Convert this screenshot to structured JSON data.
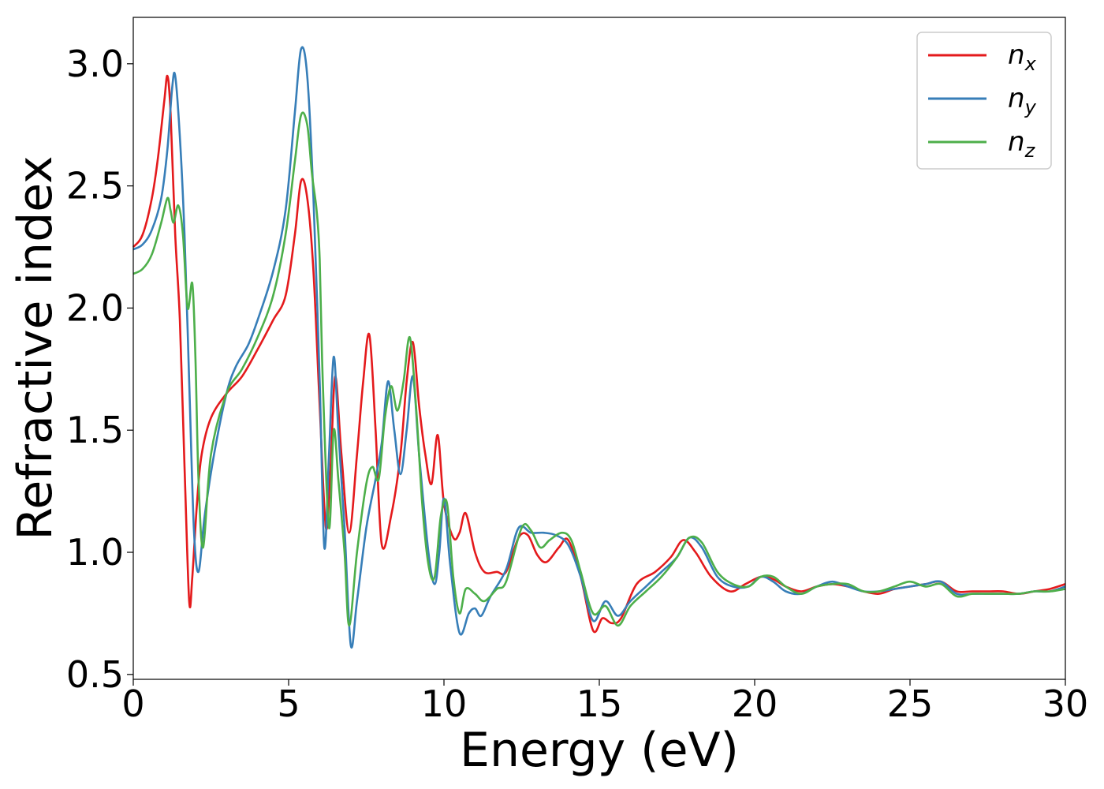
{
  "chart_data": {
    "type": "line",
    "xlabel": "Energy (eV)",
    "ylabel": "Refractive index",
    "xlim": [
      0,
      30
    ],
    "ylim": [
      0.48,
      3.19
    ],
    "xticks": [
      0,
      5,
      10,
      15,
      20,
      25,
      30
    ],
    "xtick_labels": [
      "0",
      "5",
      "10",
      "15",
      "20",
      "25",
      "30"
    ],
    "yticks": [
      0.5,
      1.0,
      1.5,
      2.0,
      2.5,
      3.0
    ],
    "ytick_labels": [
      "0.5",
      "1.0",
      "1.5",
      "2.0",
      "2.5",
      "3.0"
    ],
    "grid": false,
    "legend_position": "top-right",
    "series": [
      {
        "name": "n_x",
        "label_main": "n",
        "label_sub": "x",
        "color": "#e41a1c",
        "x": [
          0,
          0.3,
          0.6,
          0.8,
          1.0,
          1.1,
          1.2,
          1.35,
          1.5,
          1.65,
          1.8,
          1.9,
          2.05,
          2.2,
          2.5,
          3.0,
          3.5,
          4.0,
          4.5,
          4.9,
          5.2,
          5.4,
          5.6,
          5.8,
          6.0,
          6.2,
          6.35,
          6.5,
          6.7,
          6.95,
          7.2,
          7.4,
          7.6,
          7.8,
          8.0,
          8.3,
          8.6,
          8.8,
          9.0,
          9.2,
          9.4,
          9.6,
          9.8,
          10.0,
          10.3,
          10.5,
          10.7,
          11.0,
          11.3,
          11.7,
          12.0,
          12.4,
          12.7,
          13.0,
          13.3,
          13.7,
          14.0,
          14.4,
          14.8,
          15.1,
          15.4,
          15.7,
          16.2,
          16.8,
          17.3,
          17.7,
          18.1,
          18.6,
          19.2,
          19.7,
          20.2,
          20.6,
          21.0,
          21.5,
          22.0,
          22.5,
          23.0,
          23.5,
          24.0,
          24.5,
          25.0,
          25.5,
          26.0,
          26.5,
          27.0,
          27.5,
          28.0,
          28.5,
          29.0,
          29.5,
          30.0
        ],
        "y": [
          2.25,
          2.3,
          2.45,
          2.62,
          2.85,
          2.95,
          2.8,
          2.3,
          1.95,
          1.35,
          0.8,
          0.9,
          1.2,
          1.4,
          1.55,
          1.65,
          1.72,
          1.83,
          1.95,
          2.05,
          2.3,
          2.52,
          2.45,
          2.15,
          1.6,
          1.1,
          1.35,
          1.72,
          1.4,
          1.08,
          1.4,
          1.7,
          1.89,
          1.5,
          1.03,
          1.15,
          1.4,
          1.7,
          1.86,
          1.6,
          1.4,
          1.28,
          1.48,
          1.2,
          1.06,
          1.08,
          1.16,
          1.0,
          0.92,
          0.92,
          0.92,
          1.06,
          1.07,
          0.99,
          0.96,
          1.02,
          1.05,
          0.9,
          0.68,
          0.73,
          0.71,
          0.73,
          0.87,
          0.92,
          0.98,
          1.05,
          1.0,
          0.9,
          0.84,
          0.87,
          0.9,
          0.89,
          0.86,
          0.84,
          0.86,
          0.87,
          0.86,
          0.84,
          0.83,
          0.85,
          0.86,
          0.87,
          0.88,
          0.84,
          0.84,
          0.84,
          0.84,
          0.83,
          0.84,
          0.85,
          0.87
        ]
      },
      {
        "name": "n_y",
        "label_main": "n",
        "label_sub": "y",
        "color": "#377eb8",
        "x": [
          0,
          0.3,
          0.6,
          0.9,
          1.1,
          1.25,
          1.35,
          1.5,
          1.65,
          1.8,
          1.95,
          2.1,
          2.3,
          2.6,
          3.0,
          3.3,
          3.7,
          4.0,
          4.5,
          4.9,
          5.2,
          5.4,
          5.6,
          5.8,
          6.0,
          6.15,
          6.3,
          6.45,
          6.6,
          6.8,
          7.0,
          7.2,
          7.5,
          7.8,
          8.0,
          8.2,
          8.4,
          8.6,
          8.8,
          9.0,
          9.2,
          9.5,
          9.7,
          9.85,
          10.0,
          10.2,
          10.5,
          10.8,
          11.0,
          11.2,
          11.5,
          12.0,
          12.4,
          12.8,
          13.2,
          13.6,
          14.0,
          14.4,
          14.8,
          15.2,
          15.6,
          16.0,
          16.5,
          17.0,
          17.5,
          17.9,
          18.3,
          18.8,
          19.3,
          19.8,
          20.2,
          20.6,
          21.0,
          21.5,
          22.0,
          22.5,
          23.0,
          23.5,
          24.0,
          24.5,
          25.0,
          25.5,
          26.0,
          26.5,
          27.0,
          27.5,
          28.0,
          28.5,
          29.0,
          29.5,
          30.0
        ],
        "y": [
          2.24,
          2.26,
          2.32,
          2.45,
          2.65,
          2.9,
          2.95,
          2.7,
          2.3,
          1.7,
          1.1,
          0.92,
          1.15,
          1.4,
          1.65,
          1.76,
          1.85,
          1.95,
          2.15,
          2.4,
          2.8,
          3.06,
          2.95,
          2.45,
          1.7,
          1.02,
          1.4,
          1.8,
          1.5,
          1.1,
          0.62,
          0.8,
          1.1,
          1.3,
          1.45,
          1.7,
          1.5,
          1.32,
          1.5,
          1.72,
          1.4,
          1.0,
          0.87,
          1.0,
          1.22,
          0.95,
          0.67,
          0.75,
          0.77,
          0.74,
          0.82,
          0.93,
          1.1,
          1.08,
          1.08,
          1.07,
          1.03,
          0.9,
          0.72,
          0.8,
          0.74,
          0.8,
          0.86,
          0.92,
          0.98,
          1.06,
          1.02,
          0.9,
          0.86,
          0.86,
          0.9,
          0.88,
          0.84,
          0.83,
          0.86,
          0.88,
          0.86,
          0.84,
          0.84,
          0.85,
          0.86,
          0.87,
          0.88,
          0.83,
          0.83,
          0.83,
          0.83,
          0.83,
          0.84,
          0.84,
          0.86
        ]
      },
      {
        "name": "n_z",
        "label_main": "n",
        "label_sub": "z",
        "color": "#4daf4a",
        "x": [
          0,
          0.3,
          0.6,
          0.9,
          1.1,
          1.2,
          1.3,
          1.45,
          1.6,
          1.75,
          1.9,
          2.0,
          2.1,
          2.25,
          2.5,
          3.0,
          3.5,
          4.0,
          4.5,
          4.9,
          5.2,
          5.4,
          5.6,
          5.75,
          5.9,
          6.0,
          6.1,
          6.3,
          6.45,
          6.6,
          6.8,
          6.95,
          7.2,
          7.5,
          7.7,
          7.9,
          8.1,
          8.3,
          8.5,
          8.7,
          8.9,
          9.1,
          9.3,
          9.5,
          9.7,
          9.9,
          10.1,
          10.3,
          10.5,
          10.7,
          11.0,
          11.3,
          11.7,
          12.0,
          12.5,
          12.8,
          13.1,
          13.4,
          13.8,
          14.1,
          14.4,
          14.8,
          15.2,
          15.6,
          16.0,
          16.5,
          17.0,
          17.5,
          17.9,
          18.3,
          18.8,
          19.3,
          19.8,
          20.2,
          20.6,
          21.0,
          21.5,
          22.0,
          22.5,
          23.0,
          23.5,
          24.0,
          24.5,
          25.0,
          25.5,
          26.0,
          26.5,
          27.0,
          27.5,
          28.0,
          28.5,
          29.0,
          29.5,
          30.0
        ],
        "y": [
          2.14,
          2.16,
          2.22,
          2.35,
          2.45,
          2.4,
          2.35,
          2.42,
          2.3,
          2.0,
          2.1,
          1.8,
          1.3,
          1.02,
          1.4,
          1.65,
          1.75,
          1.88,
          2.05,
          2.3,
          2.6,
          2.79,
          2.75,
          2.55,
          2.4,
          2.2,
          1.7,
          1.1,
          1.5,
          1.3,
          1.0,
          0.7,
          1.0,
          1.28,
          1.35,
          1.3,
          1.55,
          1.68,
          1.58,
          1.7,
          1.88,
          1.6,
          1.2,
          0.95,
          0.9,
          1.15,
          1.2,
          0.9,
          0.75,
          0.85,
          0.83,
          0.8,
          0.85,
          0.88,
          1.1,
          1.09,
          1.02,
          1.05,
          1.08,
          1.05,
          0.92,
          0.75,
          0.78,
          0.7,
          0.78,
          0.84,
          0.9,
          0.98,
          1.06,
          1.04,
          0.92,
          0.87,
          0.86,
          0.9,
          0.9,
          0.86,
          0.83,
          0.86,
          0.87,
          0.87,
          0.84,
          0.84,
          0.86,
          0.88,
          0.86,
          0.87,
          0.82,
          0.83,
          0.83,
          0.83,
          0.83,
          0.84,
          0.84,
          0.85
        ]
      }
    ]
  }
}
